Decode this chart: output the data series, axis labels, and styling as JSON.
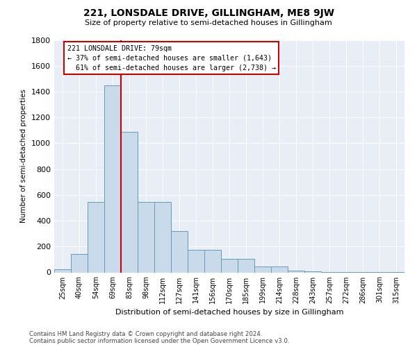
{
  "title": "221, LONSDALE DRIVE, GILLINGHAM, ME8 9JW",
  "subtitle": "Size of property relative to semi-detached houses in Gillingham",
  "xlabel": "Distribution of semi-detached houses by size in Gillingham",
  "ylabel": "Number of semi-detached properties",
  "categories": [
    "25sqm",
    "40sqm",
    "54sqm",
    "69sqm",
    "83sqm",
    "98sqm",
    "112sqm",
    "127sqm",
    "141sqm",
    "156sqm",
    "170sqm",
    "185sqm",
    "199sqm",
    "214sqm",
    "228sqm",
    "243sqm",
    "257sqm",
    "272sqm",
    "286sqm",
    "301sqm",
    "315sqm"
  ],
  "values": [
    25,
    140,
    545,
    1450,
    1090,
    545,
    545,
    320,
    175,
    175,
    105,
    105,
    45,
    45,
    12,
    8,
    4,
    3,
    2,
    2,
    2
  ],
  "bar_color": "#c9daea",
  "bar_edge_color": "#6699bb",
  "vline_color": "#cc0000",
  "vline_x": 3.5,
  "property_label": "221 LONSDALE DRIVE: 79sqm",
  "smaller_pct": "37%",
  "smaller_n": "1,643",
  "larger_pct": "61%",
  "larger_n": "2,738",
  "annotation_box_edgecolor": "#cc0000",
  "ylim": [
    0,
    1800
  ],
  "yticks": [
    0,
    200,
    400,
    600,
    800,
    1000,
    1200,
    1400,
    1600,
    1800
  ],
  "footnote1": "Contains HM Land Registry data © Crown copyright and database right 2024.",
  "footnote2": "Contains public sector information licensed under the Open Government Licence v3.0.",
  "fig_bg_color": "#ffffff",
  "plot_bg_color": "#e8eef5"
}
